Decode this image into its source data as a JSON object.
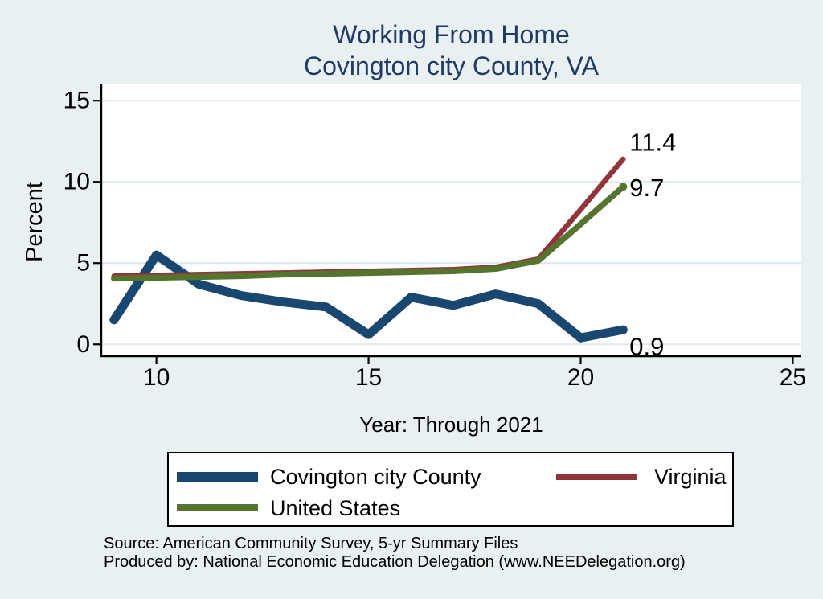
{
  "header": {
    "title_line1": "Working From Home",
    "title_line2": "Covington city County, VA"
  },
  "chart_data": {
    "type": "line",
    "title": "Working From Home — Covington city County, VA",
    "xlabel": "Year: Through 2021",
    "ylabel": "Percent",
    "x": [
      9,
      10,
      11,
      12,
      13,
      14,
      15,
      16,
      17,
      18,
      19,
      20,
      21
    ],
    "series": [
      {
        "name": "Covington city County",
        "color": "#1a476f",
        "stroke_width": 11,
        "values": [
          1.5,
          5.5,
          3.7,
          3.0,
          2.6,
          2.3,
          0.6,
          2.9,
          2.4,
          3.1,
          2.5,
          0.4,
          0.9
        ],
        "end_label": "0.9",
        "end_label_dy": 21,
        "end_dot": false
      },
      {
        "name": "Virginia",
        "color": "#90353b",
        "stroke_width": 6.5,
        "values": [
          4.2,
          4.25,
          4.3,
          4.35,
          4.4,
          4.45,
          4.5,
          4.55,
          4.6,
          4.75,
          5.25,
          8.3,
          11.4
        ],
        "end_label": "11.4",
        "end_label_dy": -21,
        "end_dot": false
      },
      {
        "name": "United States",
        "color": "#55752f",
        "stroke_width": 7.5,
        "values": [
          4.05,
          4.1,
          4.15,
          4.2,
          4.3,
          4.35,
          4.4,
          4.45,
          4.5,
          4.65,
          5.15,
          7.4,
          9.7
        ],
        "end_label": "9.7",
        "end_label_dy": 1,
        "end_dot": true
      }
    ],
    "xticks": [
      10,
      15,
      20,
      25
    ],
    "yticks": [
      0,
      5,
      10,
      15
    ],
    "xlim": [
      8.7,
      25.2
    ],
    "ylim": [
      -0.73,
      16.0
    ],
    "grid": true,
    "legend_position": "bottom"
  },
  "legend": {
    "items": [
      {
        "label": "Covington city County",
        "color": "#1a476f",
        "swatch_h": 12
      },
      {
        "label": "Virginia",
        "color": "#90353b",
        "swatch_h": 7
      },
      {
        "label": "United States",
        "color": "#55752f",
        "swatch_h": 9
      }
    ]
  },
  "footer": {
    "source_line": "Source: American Community Survey, 5-yr Summary Files",
    "produced_line": "Produced by: National Economic Education Delegation (www.NEEDelegation.org)"
  },
  "colors": {
    "background": "#e9f0f2",
    "plot_background": "#ffffff",
    "grid": "#dde9ef",
    "axis": "#000000",
    "title": "#203a63",
    "text": "#000000"
  }
}
